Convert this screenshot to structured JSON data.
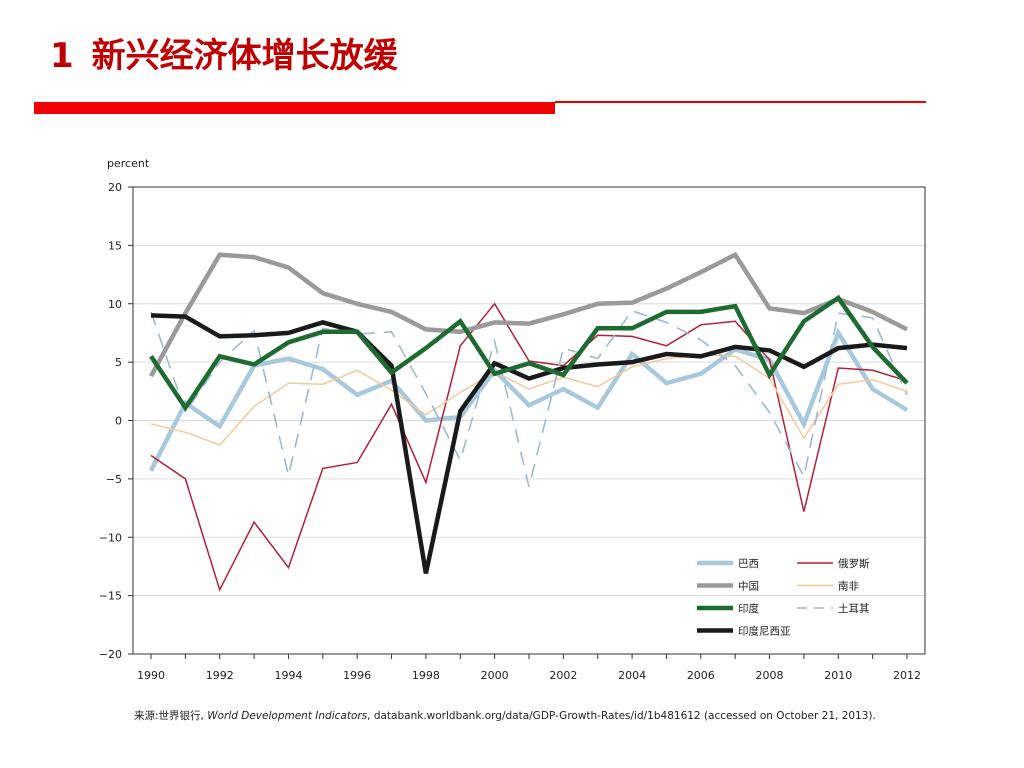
{
  "slide": {
    "number": "1",
    "title": "新兴经济体增长放缓",
    "accent_color": "#f00000",
    "title_color": "#c00000"
  },
  "source": {
    "prefix": "来源:世界银行, ",
    "italic": "World Development Indicators",
    "suffix": ", databank.worldbank.org/data/GDP-Growth-Rates/id/1b481612 (accessed on October 21, 2013)."
  },
  "chart_data": {
    "type": "line",
    "title": "",
    "xlabel": "",
    "ylabel": "percent",
    "xlim": [
      1990,
      2012
    ],
    "ylim": [
      -20,
      20
    ],
    "x": [
      1990,
      1991,
      1992,
      1993,
      1994,
      1995,
      1996,
      1997,
      1998,
      1999,
      2000,
      2001,
      2002,
      2003,
      2004,
      2005,
      2006,
      2007,
      2008,
      2009,
      2010,
      2011,
      2012
    ],
    "x_ticks": [
      "1990",
      "1992",
      "1994",
      "1996",
      "1998",
      "2000",
      "2002",
      "2004",
      "2006",
      "2008",
      "2010",
      "2012"
    ],
    "y_ticks": [
      "20",
      "15",
      "10",
      "5",
      "0",
      "−5",
      "−10",
      "−15",
      "−20"
    ],
    "grid": "horizontal",
    "legend": "bottom-right",
    "series": [
      {
        "name": "巴西",
        "color": "#a8c8dc",
        "style": "thick",
        "values": [
          -4.3,
          1.5,
          -0.5,
          4.7,
          5.3,
          4.4,
          2.2,
          3.4,
          0.0,
          0.3,
          4.3,
          1.3,
          2.7,
          1.1,
          5.7,
          3.2,
          4.0,
          6.1,
          5.2,
          -0.3,
          7.5,
          2.7,
          0.9
        ]
      },
      {
        "name": "俄罗斯",
        "color": "#b2203a",
        "style": "thin",
        "values": [
          -3.0,
          -5.0,
          -14.5,
          -8.7,
          -12.6,
          -4.1,
          -3.6,
          1.4,
          -5.3,
          6.4,
          10.0,
          5.1,
          4.7,
          7.3,
          7.2,
          6.4,
          8.2,
          8.5,
          5.2,
          -7.8,
          4.5,
          4.3,
          3.4
        ]
      },
      {
        "name": "中国",
        "color": "#9a9a9a",
        "style": "thick",
        "values": [
          3.8,
          9.2,
          14.2,
          14.0,
          13.1,
          10.9,
          10.0,
          9.3,
          7.8,
          7.6,
          8.4,
          8.3,
          9.1,
          10.0,
          10.1,
          11.3,
          12.7,
          14.2,
          9.6,
          9.2,
          10.4,
          9.3,
          7.8
        ]
      },
      {
        "name": "南非",
        "color": "#f5c898",
        "style": "thin",
        "values": [
          -0.3,
          -1.0,
          -2.1,
          1.2,
          3.2,
          3.1,
          4.3,
          2.6,
          0.5,
          2.4,
          4.2,
          2.7,
          3.7,
          2.9,
          4.6,
          5.3,
          5.6,
          5.5,
          3.6,
          -1.5,
          3.1,
          3.5,
          2.5
        ]
      },
      {
        "name": "印度",
        "color": "#1e6b32",
        "style": "thick",
        "values": [
          5.5,
          1.1,
          5.5,
          4.8,
          6.7,
          7.6,
          7.6,
          4.1,
          6.2,
          8.5,
          4.0,
          4.9,
          3.9,
          7.9,
          7.9,
          9.3,
          9.3,
          9.8,
          3.9,
          8.5,
          10.5,
          6.3,
          3.2
        ]
      },
      {
        "name": "土耳其",
        "color": "#9db9cf",
        "style": "dashed",
        "values": [
          9.3,
          0.7,
          5.0,
          7.7,
          -4.7,
          7.9,
          7.4,
          7.6,
          2.3,
          -3.4,
          6.8,
          -5.7,
          6.2,
          5.3,
          9.4,
          8.4,
          6.9,
          4.7,
          0.7,
          -4.8,
          9.2,
          8.8,
          2.2
        ]
      },
      {
        "name": "印度尼西亚",
        "color": "#1a1a1a",
        "style": "thick",
        "values": [
          9.0,
          8.9,
          7.2,
          7.3,
          7.5,
          8.4,
          7.6,
          4.7,
          -13.1,
          0.8,
          4.9,
          3.6,
          4.5,
          4.8,
          5.0,
          5.7,
          5.5,
          6.3,
          6.0,
          4.6,
          6.2,
          6.5,
          6.2
        ]
      }
    ]
  }
}
